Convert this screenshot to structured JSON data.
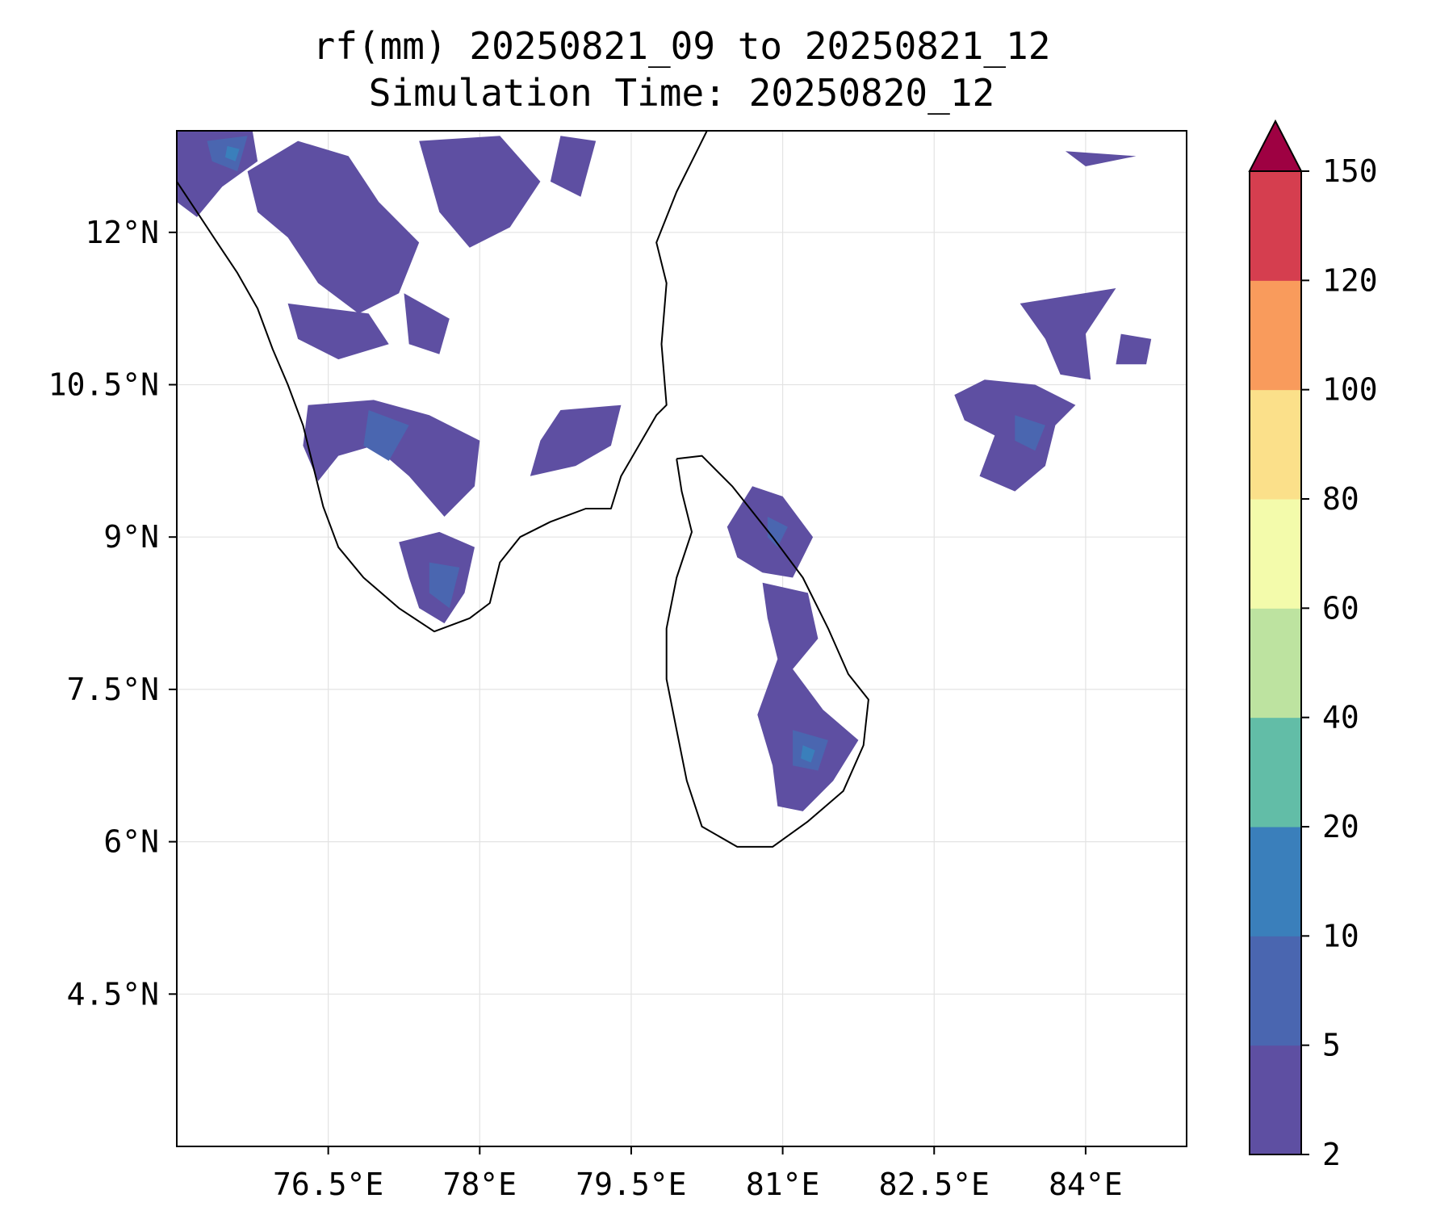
{
  "title": {
    "line1": "rf(mm) 20250821_09 to 20250821_12",
    "line2": "Simulation Time: 20250820_12"
  },
  "map": {
    "lon_range": [
      75.0,
      85.0
    ],
    "lat_range": [
      3.0,
      13.0
    ],
    "gridlines": true,
    "lon_ticks": [
      {
        "value": 76.5,
        "label": "76.5°E"
      },
      {
        "value": 78.0,
        "label": "78°E"
      },
      {
        "value": 79.5,
        "label": "79.5°E"
      },
      {
        "value": 81.0,
        "label": "81°E"
      },
      {
        "value": 82.5,
        "label": "82.5°E"
      },
      {
        "value": 84.0,
        "label": "84°E"
      }
    ],
    "lat_ticks": [
      {
        "value": 12.0,
        "label": "12°N"
      },
      {
        "value": 10.5,
        "label": "10.5°N"
      },
      {
        "value": 9.0,
        "label": "9°N"
      },
      {
        "value": 7.5,
        "label": "7.5°N"
      },
      {
        "value": 6.0,
        "label": "6°N"
      },
      {
        "value": 4.5,
        "label": "4.5°N"
      }
    ],
    "coast_color": "#000000",
    "coastlines": [
      [
        [
          75.0,
          12.5
        ],
        [
          75.2,
          12.2
        ],
        [
          75.4,
          11.9
        ],
        [
          75.6,
          11.6
        ],
        [
          75.8,
          11.25
        ],
        [
          75.95,
          10.85
        ],
        [
          76.1,
          10.5
        ],
        [
          76.25,
          10.1
        ],
        [
          76.35,
          9.7
        ],
        [
          76.45,
          9.3
        ],
        [
          76.6,
          8.9
        ],
        [
          76.85,
          8.6
        ],
        [
          77.2,
          8.3
        ],
        [
          77.55,
          8.07
        ],
        [
          77.9,
          8.2
        ],
        [
          78.1,
          8.35
        ],
        [
          78.2,
          8.75
        ],
        [
          78.4,
          9.0
        ],
        [
          78.7,
          9.15
        ],
        [
          79.05,
          9.28
        ],
        [
          79.3,
          9.28
        ],
        [
          79.4,
          9.6
        ],
        [
          79.75,
          10.2
        ],
        [
          79.85,
          10.3
        ],
        [
          79.8,
          10.9
        ],
        [
          79.85,
          11.5
        ],
        [
          79.75,
          11.9
        ],
        [
          79.95,
          12.4
        ],
        [
          80.15,
          12.8
        ],
        [
          80.25,
          13.0
        ]
      ],
      [
        [
          79.95,
          9.77
        ],
        [
          80.2,
          9.8
        ],
        [
          80.5,
          9.5
        ],
        [
          80.9,
          9.0
        ],
        [
          81.2,
          8.6
        ],
        [
          81.45,
          8.1
        ],
        [
          81.65,
          7.65
        ],
        [
          81.85,
          7.4
        ],
        [
          81.8,
          6.95
        ],
        [
          81.6,
          6.5
        ],
        [
          81.25,
          6.2
        ],
        [
          80.9,
          5.95
        ],
        [
          80.55,
          5.95
        ],
        [
          80.2,
          6.15
        ],
        [
          80.05,
          6.6
        ],
        [
          79.95,
          7.1
        ],
        [
          79.85,
          7.6
        ],
        [
          79.85,
          8.1
        ],
        [
          79.95,
          8.6
        ],
        [
          80.1,
          9.05
        ],
        [
          80.0,
          9.45
        ],
        [
          79.95,
          9.77
        ]
      ]
    ],
    "rain_regions": [
      {
        "bin": "2-5",
        "points": [
          [
            75.0,
            13.0
          ],
          [
            75.75,
            13.0
          ],
          [
            75.8,
            12.7
          ],
          [
            75.45,
            12.45
          ],
          [
            75.2,
            12.15
          ],
          [
            75.0,
            12.3
          ]
        ]
      },
      {
        "bin": "2-5",
        "points": [
          [
            75.7,
            12.6
          ],
          [
            76.2,
            12.9
          ],
          [
            76.7,
            12.75
          ],
          [
            77.0,
            12.3
          ],
          [
            77.4,
            11.9
          ],
          [
            77.2,
            11.4
          ],
          [
            76.8,
            11.2
          ],
          [
            76.4,
            11.5
          ],
          [
            76.1,
            11.95
          ],
          [
            75.8,
            12.2
          ]
        ]
      },
      {
        "bin": "2-5",
        "points": [
          [
            77.4,
            12.9
          ],
          [
            78.2,
            12.95
          ],
          [
            78.6,
            12.5
          ],
          [
            78.3,
            12.05
          ],
          [
            77.9,
            11.85
          ],
          [
            77.6,
            12.2
          ]
        ]
      },
      {
        "bin": "2-5",
        "points": [
          [
            78.8,
            12.95
          ],
          [
            79.15,
            12.9
          ],
          [
            79.0,
            12.35
          ],
          [
            78.7,
            12.5
          ]
        ]
      },
      {
        "bin": "2-5",
        "points": [
          [
            76.1,
            11.3
          ],
          [
            76.9,
            11.2
          ],
          [
            77.1,
            10.9
          ],
          [
            76.6,
            10.75
          ],
          [
            76.2,
            10.95
          ]
        ]
      },
      {
        "bin": "2-5",
        "points": [
          [
            77.25,
            11.4
          ],
          [
            77.7,
            11.15
          ],
          [
            77.6,
            10.8
          ],
          [
            77.3,
            10.9
          ]
        ]
      },
      {
        "bin": "2-5",
        "points": [
          [
            76.3,
            10.3
          ],
          [
            76.95,
            10.35
          ],
          [
            77.5,
            10.2
          ],
          [
            78.0,
            9.95
          ],
          [
            77.95,
            9.5
          ],
          [
            77.65,
            9.2
          ],
          [
            77.3,
            9.6
          ],
          [
            76.95,
            9.9
          ],
          [
            76.6,
            9.8
          ],
          [
            76.4,
            9.55
          ],
          [
            76.25,
            9.9
          ]
        ]
      },
      {
        "bin": "2-5",
        "points": [
          [
            78.8,
            10.25
          ],
          [
            79.4,
            10.3
          ],
          [
            79.3,
            9.9
          ],
          [
            78.95,
            9.7
          ],
          [
            78.5,
            9.6
          ],
          [
            78.6,
            9.95
          ]
        ]
      },
      {
        "bin": "2-5",
        "points": [
          [
            77.2,
            8.95
          ],
          [
            77.6,
            9.05
          ],
          [
            77.95,
            8.9
          ],
          [
            77.85,
            8.45
          ],
          [
            77.65,
            8.15
          ],
          [
            77.4,
            8.3
          ],
          [
            77.3,
            8.6
          ]
        ]
      },
      {
        "bin": "2-5",
        "points": [
          [
            83.8,
            12.8
          ],
          [
            84.5,
            12.75
          ],
          [
            84.0,
            12.65
          ]
        ]
      },
      {
        "bin": "2-5",
        "points": [
          [
            83.5,
            10.5
          ],
          [
            83.0,
            10.55
          ],
          [
            82.7,
            10.4
          ],
          [
            82.8,
            10.15
          ],
          [
            83.1,
            10.0
          ],
          [
            82.95,
            9.6
          ],
          [
            83.3,
            9.45
          ],
          [
            83.6,
            9.7
          ],
          [
            83.7,
            10.1
          ],
          [
            83.9,
            10.3
          ]
        ]
      },
      {
        "bin": "2-5",
        "points": [
          [
            83.35,
            11.3
          ],
          [
            84.3,
            11.45
          ],
          [
            84.0,
            11.0
          ],
          [
            84.05,
            10.55
          ],
          [
            83.75,
            10.6
          ],
          [
            83.6,
            10.95
          ]
        ]
      },
      {
        "bin": "2-5",
        "points": [
          [
            84.35,
            11.0
          ],
          [
            84.65,
            10.95
          ],
          [
            84.6,
            10.7
          ],
          [
            84.3,
            10.7
          ]
        ]
      },
      {
        "bin": "2-5",
        "points": [
          [
            80.7,
            9.5
          ],
          [
            81.0,
            9.4
          ],
          [
            81.3,
            9.0
          ],
          [
            81.1,
            8.6
          ],
          [
            80.8,
            8.65
          ],
          [
            80.55,
            8.8
          ],
          [
            80.45,
            9.1
          ]
        ]
      },
      {
        "bin": "2-5",
        "points": [
          [
            80.8,
            8.55
          ],
          [
            81.25,
            8.45
          ],
          [
            81.35,
            8.0
          ],
          [
            81.1,
            7.7
          ],
          [
            81.4,
            7.3
          ],
          [
            81.75,
            7.0
          ],
          [
            81.5,
            6.6
          ],
          [
            81.2,
            6.3
          ],
          [
            80.95,
            6.35
          ],
          [
            80.9,
            6.75
          ],
          [
            80.75,
            7.25
          ],
          [
            80.95,
            7.8
          ],
          [
            80.85,
            8.2
          ]
        ]
      },
      {
        "bin": "5-10",
        "points": [
          [
            75.3,
            12.9
          ],
          [
            75.7,
            12.95
          ],
          [
            75.6,
            12.6
          ],
          [
            75.35,
            12.7
          ]
        ]
      },
      {
        "bin": "5-10",
        "points": [
          [
            76.9,
            10.25
          ],
          [
            77.3,
            10.1
          ],
          [
            77.1,
            9.75
          ],
          [
            76.85,
            9.9
          ]
        ]
      },
      {
        "bin": "5-10",
        "points": [
          [
            77.5,
            8.75
          ],
          [
            77.8,
            8.7
          ],
          [
            77.7,
            8.3
          ],
          [
            77.5,
            8.45
          ]
        ]
      },
      {
        "bin": "5-10",
        "points": [
          [
            81.1,
            7.1
          ],
          [
            81.45,
            7.0
          ],
          [
            81.35,
            6.7
          ],
          [
            81.1,
            6.75
          ]
        ]
      },
      {
        "bin": "5-10",
        "points": [
          [
            80.85,
            9.2
          ],
          [
            81.05,
            9.1
          ],
          [
            80.95,
            8.9
          ],
          [
            80.85,
            9.0
          ]
        ]
      },
      {
        "bin": "5-10",
        "points": [
          [
            83.3,
            10.2
          ],
          [
            83.6,
            10.1
          ],
          [
            83.5,
            9.85
          ],
          [
            83.3,
            9.95
          ]
        ]
      },
      {
        "bin": "10-20",
        "points": [
          [
            75.5,
            12.85
          ],
          [
            75.62,
            12.82
          ],
          [
            75.58,
            12.7
          ],
          [
            75.48,
            12.74
          ]
        ]
      },
      {
        "bin": "10-20",
        "points": [
          [
            81.2,
            6.95
          ],
          [
            81.32,
            6.9
          ],
          [
            81.28,
            6.78
          ],
          [
            81.18,
            6.82
          ]
        ]
      }
    ]
  },
  "colorbar": {
    "levels": [
      2,
      5,
      10,
      20,
      40,
      60,
      80,
      100,
      120,
      150
    ],
    "colors": [
      "#5e4fa2",
      "#4a66b0",
      "#3a7fbb",
      "#62bda7",
      "#bde3a0",
      "#f3fbab",
      "#fbe08a",
      "#f99b5c",
      "#d53e4f"
    ],
    "extend_color": "#9e0142",
    "tick_labels": [
      "2",
      "5",
      "10",
      "20",
      "40",
      "60",
      "80",
      "100",
      "120",
      "150"
    ]
  }
}
